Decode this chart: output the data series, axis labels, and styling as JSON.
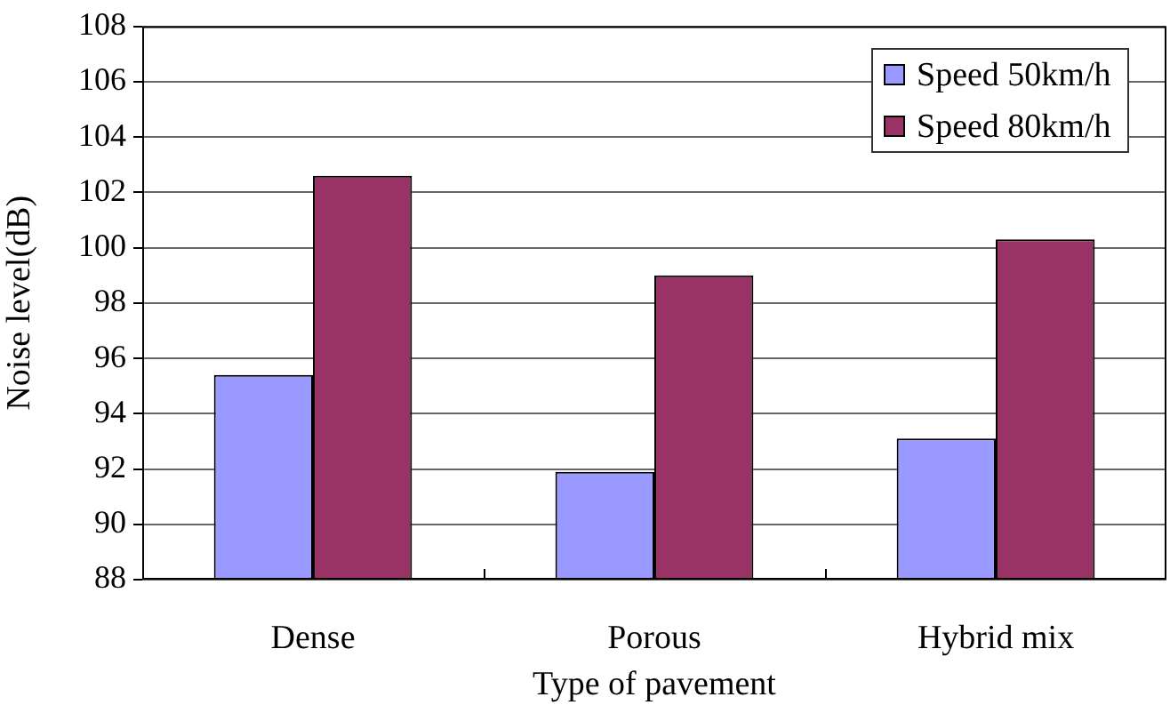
{
  "chart_data": {
    "type": "bar",
    "xlabel": "Type of pavement",
    "ylabel": "Noise level(dB)",
    "categories": [
      "Dense",
      "Porous",
      "Hybrid mix"
    ],
    "series": [
      {
        "name": "Speed 50km/h",
        "color": "#9999ff",
        "values": [
          95.4,
          91.9,
          93.1
        ]
      },
      {
        "name": "Speed 80km/h",
        "color": "#993366",
        "values": [
          102.6,
          99,
          100.3
        ]
      }
    ],
    "ylim": [
      88,
      108
    ],
    "yticks": [
      88,
      90,
      92,
      94,
      96,
      98,
      100,
      102,
      104,
      106,
      108
    ],
    "grid": "y",
    "legend": "top right"
  }
}
